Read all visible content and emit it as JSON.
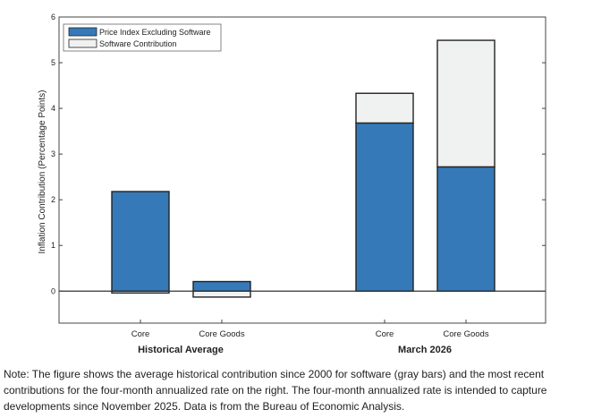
{
  "chart_data": {
    "type": "bar",
    "stacked": true,
    "ylabel": "Inflation Contribution (Percentage Points)",
    "ylim": [
      -0.7,
      6
    ],
    "yticks": [
      "0",
      "1",
      "2",
      "3",
      "4",
      "5",
      "6"
    ],
    "grid": false,
    "legend_position": "top-left",
    "colors": {
      "ex_software": "#3579b8",
      "software": "#f0f1f1"
    },
    "groups": [
      {
        "label": "Historical Average",
        "categories": [
          {
            "label": "Core",
            "ex_software": 2.18,
            "software": -0.04
          },
          {
            "label": "Core Goods",
            "ex_software": 0.21,
            "software": -0.13
          }
        ]
      },
      {
        "label": "March 2026",
        "categories": [
          {
            "label": "Core",
            "ex_software": 3.68,
            "software": 0.65
          },
          {
            "label": "Core Goods",
            "ex_software": 2.72,
            "software": 2.77
          }
        ]
      }
    ],
    "series": [
      {
        "key": "ex_software",
        "name": "Price Index Excluding Software"
      },
      {
        "key": "software",
        "name": "Software Contribution"
      }
    ]
  },
  "note": "Note: The figure shows the average historical contribution since 2000 for software (gray bars) and the most recent contributions for the four-month annualized rate on the right. The four-month annualized rate is intended to capture developments since November 2025. Data is from the Bureau of Economic Analysis."
}
